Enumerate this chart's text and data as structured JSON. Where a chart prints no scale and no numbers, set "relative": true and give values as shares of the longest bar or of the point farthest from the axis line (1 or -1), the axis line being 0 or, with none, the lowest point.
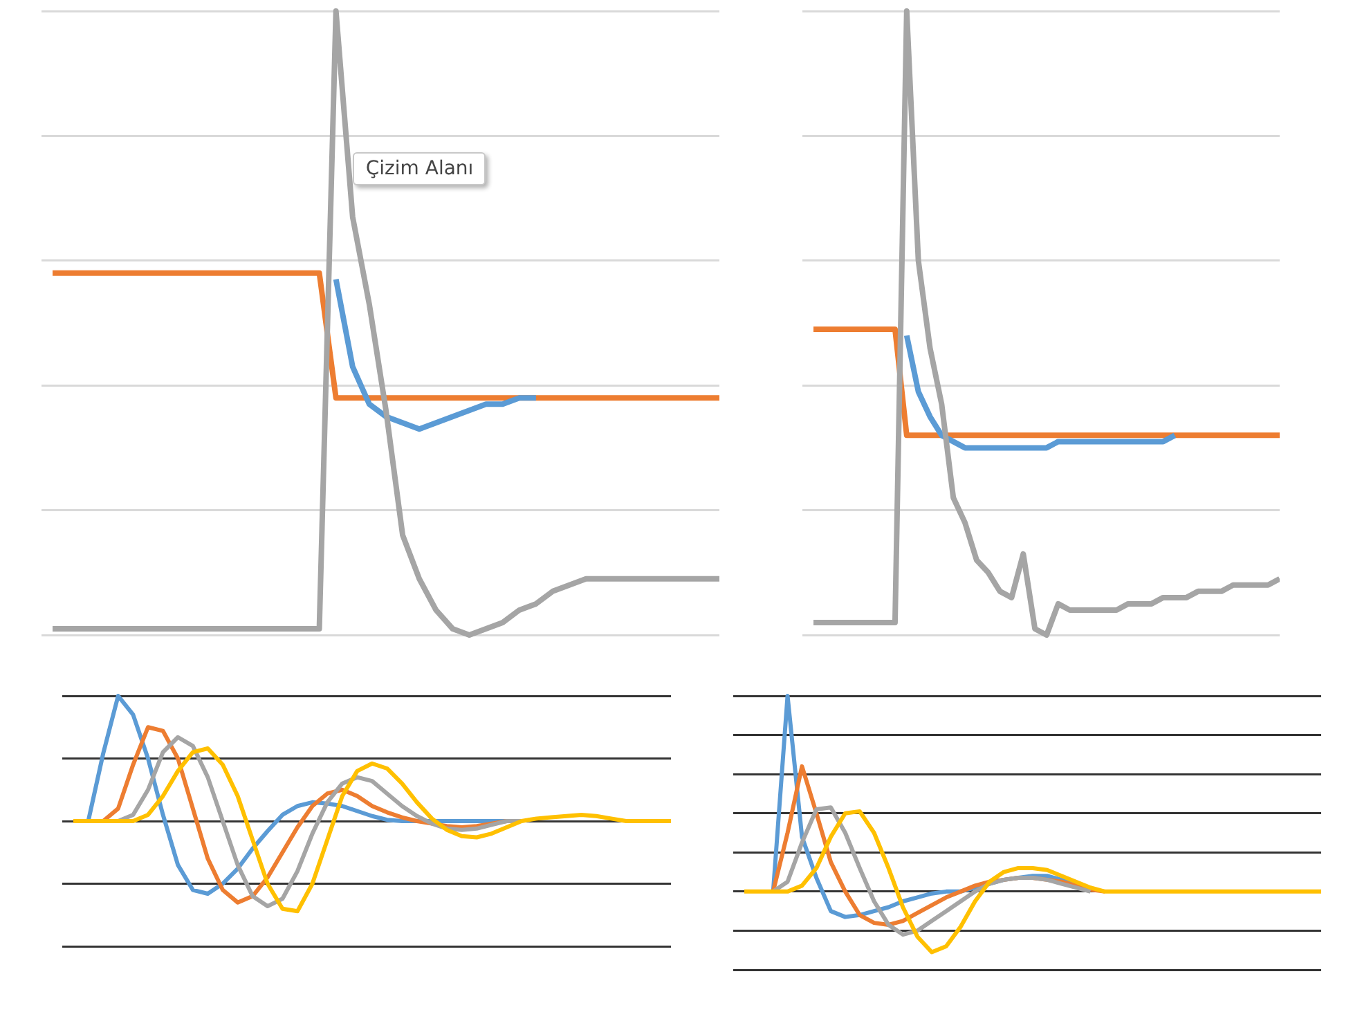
{
  "chart_data": [
    {
      "type": "line",
      "relative": true,
      "grid": "y",
      "annotations": [
        "Çizim Alanı"
      ],
      "categories": [
        null,
        null,
        null,
        null,
        null,
        null,
        null,
        null,
        null,
        null,
        null,
        null,
        null,
        null,
        null,
        null,
        null,
        null,
        null,
        null,
        null,
        null,
        null,
        null,
        null,
        null,
        null,
        null,
        null,
        null,
        null,
        null,
        null,
        null,
        null,
        null,
        null,
        null,
        null,
        null,
        null
      ],
      "series": [
        {
          "color": "#ed7d31",
          "values": [
            0.58,
            0.58,
            0.58,
            0.58,
            0.58,
            0.58,
            0.58,
            0.58,
            0.58,
            0.58,
            0.58,
            0.58,
            0.58,
            0.58,
            0.58,
            0.58,
            0.58,
            0.38,
            0.38,
            0.38,
            0.38,
            0.38,
            0.38,
            0.38,
            0.38,
            0.38,
            0.38,
            0.38,
            0.38,
            0.38,
            0.38,
            0.38,
            0.38,
            0.38,
            0.38,
            0.38,
            0.38,
            0.38,
            0.38,
            0.38,
            0.38
          ]
        },
        {
          "color": "#5b9bd5",
          "values": [
            null,
            null,
            null,
            null,
            null,
            null,
            null,
            null,
            null,
            null,
            null,
            null,
            null,
            null,
            null,
            null,
            null,
            0.57,
            0.43,
            0.37,
            0.35,
            0.34,
            0.33,
            0.34,
            0.35,
            0.36,
            0.37,
            0.37,
            0.38,
            0.38,
            null,
            null,
            null,
            null,
            null,
            null,
            null,
            null,
            null,
            null,
            null
          ]
        },
        {
          "color": "#a5a5a5",
          "values": [
            0.01,
            0.01,
            0.01,
            0.01,
            0.01,
            0.01,
            0.01,
            0.01,
            0.01,
            0.01,
            0.01,
            0.01,
            0.01,
            0.01,
            0.01,
            0.01,
            0.01,
            1,
            0.67,
            0.53,
            0.36,
            0.16,
            0.09,
            0.04,
            0.01,
            0,
            0.01,
            0.02,
            0.04,
            0.05,
            0.07,
            0.08,
            0.09,
            0.09,
            0.09,
            0.09,
            0.09,
            0.09,
            0.09,
            0.09,
            0.09
          ]
        }
      ]
    },
    {
      "type": "line",
      "relative": true,
      "grid": "y",
      "categories": [
        null,
        null,
        null,
        null,
        null,
        null,
        null,
        null,
        null,
        null,
        null,
        null,
        null,
        null,
        null,
        null,
        null,
        null,
        null,
        null,
        null,
        null,
        null,
        null,
        null,
        null,
        null,
        null,
        null,
        null,
        null,
        null,
        null,
        null,
        null,
        null,
        null,
        null,
        null,
        null,
        null
      ],
      "series": [
        {
          "color": "#ed7d31",
          "values": [
            0.49,
            0.49,
            0.49,
            0.49,
            0.49,
            0.49,
            0.49,
            0.49,
            0.32,
            0.32,
            0.32,
            0.32,
            0.32,
            0.32,
            0.32,
            0.32,
            0.32,
            0.32,
            0.32,
            0.32,
            0.32,
            0.32,
            0.32,
            0.32,
            0.32,
            0.32,
            0.32,
            0.32,
            0.32,
            0.32,
            0.32,
            0.32,
            0.32,
            0.32,
            0.32,
            0.32,
            0.32,
            0.32,
            0.32,
            0.32,
            0.32
          ]
        },
        {
          "color": "#5b9bd5",
          "values": [
            null,
            null,
            null,
            null,
            null,
            null,
            null,
            null,
            0.48,
            0.39,
            0.35,
            0.32,
            0.31,
            0.3,
            0.3,
            0.3,
            0.3,
            0.3,
            0.3,
            0.3,
            0.3,
            0.31,
            0.31,
            0.31,
            0.31,
            0.31,
            0.31,
            0.31,
            0.31,
            0.31,
            0.31,
            0.32,
            null,
            null,
            null,
            null,
            null,
            null,
            null,
            null,
            null
          ]
        },
        {
          "color": "#a5a5a5",
          "values": [
            0.02,
            0.02,
            0.02,
            0.02,
            0.02,
            0.02,
            0.02,
            0.02,
            1,
            0.6,
            0.46,
            0.37,
            0.22,
            0.18,
            0.12,
            0.1,
            0.07,
            0.06,
            0.13,
            0.01,
            0,
            0.05,
            0.04,
            0.04,
            0.04,
            0.04,
            0.04,
            0.05,
            0.05,
            0.05,
            0.06,
            0.06,
            0.06,
            0.07,
            0.07,
            0.07,
            0.08,
            0.08,
            0.08,
            0.08,
            0.09
          ]
        }
      ]
    },
    {
      "type": "line",
      "relative": true,
      "grid": "y",
      "categories": [
        null,
        null,
        null,
        null,
        null,
        null,
        null,
        null,
        null,
        null,
        null,
        null,
        null,
        null,
        null,
        null,
        null,
        null,
        null,
        null,
        null,
        null,
        null,
        null,
        null,
        null,
        null,
        null,
        null,
        null,
        null,
        null,
        null,
        null,
        null,
        null,
        null,
        null,
        null,
        null,
        null
      ],
      "series": [
        {
          "color": "#5b9bd5",
          "values": [
            null,
            0,
            0.54,
            1,
            0.85,
            0.5,
            0.05,
            -0.35,
            -0.55,
            -0.58,
            -0.5,
            -0.38,
            -0.22,
            -0.08,
            0.05,
            0.12,
            0.15,
            0.14,
            0.12,
            0.08,
            0.04,
            0.01,
            0,
            0,
            0,
            0,
            0,
            0,
            0,
            0,
            0,
            null,
            null,
            null,
            null,
            null,
            null,
            null,
            null,
            null,
            null
          ]
        },
        {
          "color": "#ed7d31",
          "values": [
            null,
            null,
            0,
            0.1,
            0.45,
            0.75,
            0.72,
            0.5,
            0.1,
            -0.3,
            -0.55,
            -0.65,
            -0.6,
            -0.45,
            -0.25,
            -0.05,
            0.12,
            0.22,
            0.25,
            0.2,
            0.12,
            0.07,
            0.03,
            0,
            -0.02,
            -0.04,
            -0.05,
            -0.04,
            -0.02,
            0,
            0,
            null,
            null,
            null,
            null,
            null,
            null,
            null,
            null,
            null,
            null
          ]
        },
        {
          "color": "#a5a5a5",
          "values": [
            null,
            null,
            null,
            0,
            0.05,
            0.25,
            0.55,
            0.67,
            0.6,
            0.35,
            0,
            -0.35,
            -0.6,
            -0.68,
            -0.62,
            -0.4,
            -0.1,
            0.15,
            0.3,
            0.35,
            0.32,
            0.22,
            0.12,
            0.04,
            -0.02,
            -0.06,
            -0.07,
            -0.06,
            -0.03,
            0,
            0,
            null,
            null,
            null,
            null,
            null,
            null,
            null,
            null,
            null,
            null
          ]
        },
        {
          "color": "#ffc000",
          "values": [
            0,
            0,
            0,
            0,
            0,
            0.05,
            0.2,
            0.4,
            0.55,
            0.58,
            0.45,
            0.2,
            -0.15,
            -0.5,
            -0.7,
            -0.72,
            -0.5,
            -0.15,
            0.2,
            0.4,
            0.46,
            0.42,
            0.3,
            0.15,
            0.02,
            -0.07,
            -0.12,
            -0.13,
            -0.1,
            -0.05,
            0,
            0.02,
            0.03,
            0.04,
            0.05,
            0.04,
            0.02,
            0,
            0,
            0,
            0
          ]
        }
      ]
    },
    {
      "type": "line",
      "relative": true,
      "grid": "y",
      "categories": [
        null,
        null,
        null,
        null,
        null,
        null,
        null,
        null,
        null,
        null,
        null,
        null,
        null,
        null,
        null,
        null,
        null,
        null,
        null,
        null,
        null,
        null,
        null,
        null,
        null,
        null,
        null,
        null,
        null,
        null,
        null,
        null,
        null,
        null,
        null,
        null,
        null,
        null,
        null,
        null,
        null
      ],
      "series": [
        {
          "color": "#5b9bd5",
          "values": [
            null,
            null,
            0,
            1,
            0.28,
            0.07,
            -0.1,
            -0.13,
            -0.12,
            -0.1,
            -0.08,
            -0.05,
            -0.03,
            -0.01,
            0,
            0,
            0.02,
            0.04,
            0.06,
            0.07,
            0.08,
            0.08,
            0.06,
            0.03,
            null,
            null,
            null,
            null,
            null,
            null,
            null,
            null,
            null,
            null,
            null,
            null,
            null,
            null,
            null,
            null,
            null
          ]
        },
        {
          "color": "#ed7d31",
          "values": [
            null,
            null,
            0,
            0.3,
            0.64,
            0.4,
            0.15,
            0,
            -0.12,
            -0.16,
            -0.17,
            -0.15,
            -0.11,
            -0.07,
            -0.03,
            0,
            0.03,
            0.05,
            0.06,
            0.07,
            0.07,
            0.06,
            0.05,
            0.03,
            0.01,
            0,
            null,
            null,
            null,
            null,
            null,
            null,
            null,
            null,
            null,
            null,
            null,
            null,
            null,
            null,
            null
          ]
        },
        {
          "color": "#a5a5a5",
          "values": [
            null,
            null,
            0,
            0.05,
            0.25,
            0.42,
            0.43,
            0.3,
            0.12,
            -0.05,
            -0.17,
            -0.22,
            -0.2,
            -0.15,
            -0.1,
            -0.05,
            0,
            0.04,
            0.06,
            0.07,
            0.07,
            0.06,
            0.04,
            0.02,
            0,
            null,
            null,
            null,
            null,
            null,
            null,
            null,
            null,
            null,
            null,
            null,
            null,
            null,
            null,
            null,
            null
          ]
        },
        {
          "color": "#ffc000",
          "values": [
            0,
            0,
            0,
            0,
            0.03,
            0.12,
            0.28,
            0.4,
            0.41,
            0.3,
            0.12,
            -0.08,
            -0.23,
            -0.31,
            -0.28,
            -0.18,
            -0.05,
            0.05,
            0.1,
            0.12,
            0.12,
            0.11,
            0.08,
            0.05,
            0.02,
            0,
            0,
            0,
            0,
            0,
            0,
            0,
            0,
            0,
            0,
            0,
            0,
            0,
            0,
            0,
            0
          ]
        }
      ]
    }
  ]
}
